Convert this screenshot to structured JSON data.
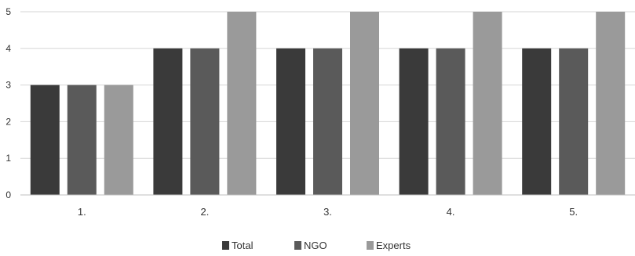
{
  "chart_data": {
    "type": "bar",
    "categories": [
      "1.",
      "2.",
      "3.",
      "4.",
      "5."
    ],
    "series": [
      {
        "name": "Total",
        "values": [
          3,
          4,
          4,
          4,
          4
        ],
        "color": "#3a3a3a"
      },
      {
        "name": "NGO",
        "values": [
          3,
          4,
          4,
          4,
          4
        ],
        "color": "#5a5a5a"
      },
      {
        "name": "Experts",
        "values": [
          3,
          5,
          5,
          5,
          5
        ],
        "color": "#9a9a9a"
      }
    ],
    "ylim": [
      0,
      5
    ],
    "yticks": [
      "0",
      "1",
      "2",
      "3",
      "4",
      "5"
    ],
    "grid": true,
    "legend_position": "bottom"
  }
}
